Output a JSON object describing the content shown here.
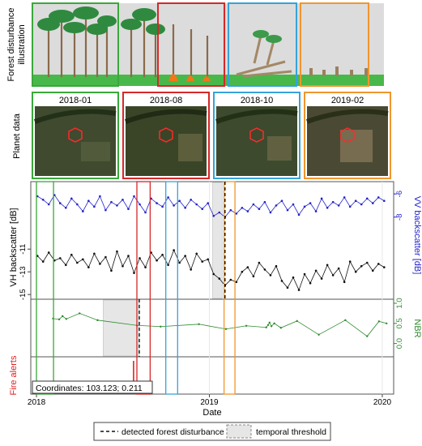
{
  "illustration": {
    "row_label_line1": "Forest disturbance",
    "row_label_line2": "illustration"
  },
  "planet": {
    "row_label": "Planet data",
    "panels": [
      {
        "label": "2018-01",
        "color": "#3aa83a"
      },
      {
        "label": "2018-08",
        "color": "#d62728"
      },
      {
        "label": "2018-10",
        "color": "#35a3d9"
      },
      {
        "label": "2019-02",
        "color": "#f0962e"
      }
    ]
  },
  "colors": {
    "vh": "#111111",
    "vv": "#2222cc",
    "nbr": "#2e8b2e",
    "fire": "#e02020",
    "threshold": "#e6e6e6",
    "green": "#3aa83a",
    "red": "#d62728",
    "blue": "#35a3d9",
    "orange": "#f0962e"
  },
  "annotation": {
    "coordinates": "Coordinates: 103.123; 0.211"
  },
  "legend": {
    "detected": "detected forest disturbance",
    "threshold": "temporal threshold"
  },
  "chart_data": [
    {
      "type": "line",
      "panel": "backscatter",
      "ylabel_left": "VH backscatter [dB]",
      "ylabel_right": "VV backscatter [dB]",
      "xlim": [
        "2017-12-20",
        "2020-01-25"
      ],
      "left_ticks": [
        "-11",
        "-13",
        "-15"
      ],
      "right_ticks": [
        "-6",
        "-8"
      ],
      "series": [
        {
          "name": "VV",
          "axis": "right",
          "x": [
            "2018-01-03",
            "2018-01-15",
            "2018-01-27",
            "2018-02-08",
            "2018-02-20",
            "2018-03-04",
            "2018-03-16",
            "2018-03-28",
            "2018-04-09",
            "2018-04-21",
            "2018-05-03",
            "2018-05-15",
            "2018-05-27",
            "2018-06-08",
            "2018-06-20",
            "2018-07-02",
            "2018-07-14",
            "2018-07-26",
            "2018-08-07",
            "2018-08-19",
            "2018-08-31",
            "2018-09-12",
            "2018-09-24",
            "2018-10-06",
            "2018-10-18",
            "2018-10-30",
            "2018-11-11",
            "2018-11-23",
            "2018-12-05",
            "2018-12-17",
            "2018-12-29",
            "2019-01-10",
            "2019-01-22",
            "2019-02-03",
            "2019-02-15",
            "2019-02-27",
            "2019-03-11",
            "2019-03-23",
            "2019-04-04",
            "2019-04-16",
            "2019-04-28",
            "2019-05-10",
            "2019-05-22",
            "2019-06-03",
            "2019-06-15",
            "2019-06-27",
            "2019-07-09",
            "2019-07-21",
            "2019-08-02",
            "2019-08-14",
            "2019-08-26",
            "2019-09-07",
            "2019-09-19",
            "2019-10-01",
            "2019-10-13",
            "2019-10-25",
            "2019-11-06",
            "2019-11-18",
            "2019-11-30",
            "2019-12-12",
            "2019-12-24",
            "2020-01-05"
          ],
          "y": [
            -6.2,
            -6.5,
            -6.9,
            -6.1,
            -6.8,
            -7.2,
            -6.4,
            -6.9,
            -7.5,
            -6.6,
            -7.1,
            -6.2,
            -7.4,
            -6.7,
            -7.0,
            -6.5,
            -7.3,
            -6.2,
            -6.9,
            -7.6,
            -6.4,
            -6.8,
            -7.1,
            -6.3,
            -7.0,
            -6.6,
            -7.2,
            -6.5,
            -6.9,
            -7.3,
            -6.8,
            -7.9,
            -7.6,
            -8.0,
            -7.4,
            -7.7,
            -7.2,
            -7.5,
            -6.9,
            -7.3,
            -6.7,
            -7.6,
            -7.0,
            -6.6,
            -7.4,
            -6.9,
            -7.8,
            -7.1,
            -6.8,
            -7.5,
            -6.4,
            -7.2,
            -6.7,
            -7.0,
            -6.3,
            -7.1,
            -6.6,
            -6.9,
            -6.4,
            -6.8,
            -6.3,
            -6.6
          ]
        },
        {
          "name": "VH",
          "axis": "left",
          "x": [
            "2018-01-03",
            "2018-01-15",
            "2018-01-27",
            "2018-02-08",
            "2018-02-20",
            "2018-03-04",
            "2018-03-16",
            "2018-03-28",
            "2018-04-09",
            "2018-04-21",
            "2018-05-03",
            "2018-05-15",
            "2018-05-27",
            "2018-06-08",
            "2018-06-20",
            "2018-07-02",
            "2018-07-14",
            "2018-07-26",
            "2018-08-07",
            "2018-08-19",
            "2018-08-31",
            "2018-09-12",
            "2018-09-24",
            "2018-10-06",
            "2018-10-18",
            "2018-10-30",
            "2018-11-11",
            "2018-11-23",
            "2018-12-05",
            "2018-12-17",
            "2018-12-29",
            "2019-01-10",
            "2019-01-22",
            "2019-02-03",
            "2019-02-15",
            "2019-02-27",
            "2019-03-11",
            "2019-03-23",
            "2019-04-04",
            "2019-04-16",
            "2019-04-28",
            "2019-05-10",
            "2019-05-22",
            "2019-06-03",
            "2019-06-15",
            "2019-06-27",
            "2019-07-09",
            "2019-07-21",
            "2019-08-02",
            "2019-08-14",
            "2019-08-26",
            "2019-09-07",
            "2019-09-19",
            "2019-10-01",
            "2019-10-13",
            "2019-10-25",
            "2019-11-06",
            "2019-11-18",
            "2019-11-30",
            "2019-12-12",
            "2019-12-24",
            "2020-01-05"
          ],
          "y": [
            -11.6,
            -12.1,
            -11.3,
            -12.0,
            -11.8,
            -12.4,
            -11.5,
            -12.2,
            -11.9,
            -12.6,
            -11.4,
            -12.3,
            -11.7,
            -12.9,
            -11.2,
            -12.5,
            -11.6,
            -13.1,
            -11.8,
            -12.6,
            -11.3,
            -12.0,
            -11.5,
            -12.4,
            -11.1,
            -12.2,
            -11.6,
            -12.8,
            -11.4,
            -12.1,
            -11.9,
            -13.2,
            -13.6,
            -14.2,
            -13.7,
            -13.9,
            -13.0,
            -12.6,
            -13.4,
            -12.2,
            -12.8,
            -13.3,
            -12.5,
            -13.8,
            -14.4,
            -13.5,
            -14.6,
            -13.2,
            -14.0,
            -12.9,
            -13.6,
            -12.4,
            -13.3,
            -12.7,
            -13.9,
            -12.1,
            -13.0,
            -12.5,
            -12.2,
            -12.9,
            -12.3,
            -12.6
          ]
        }
      ]
    },
    {
      "type": "line",
      "panel": "nbr",
      "ylabel_right": "NBR",
      "ylim": [
        -0.25,
        1.0
      ],
      "right_ticks": [
        "1.0",
        "0.5",
        "0.0"
      ],
      "series": [
        {
          "name": "NBR",
          "x": [
            "2018-02-05",
            "2018-02-18",
            "2018-02-25",
            "2018-03-05",
            "2018-04-02",
            "2018-05-10",
            "2018-08-01",
            "2018-09-20",
            "2018-12-10",
            "2019-02-05",
            "2019-03-20",
            "2019-05-01",
            "2019-05-05",
            "2019-05-08",
            "2019-05-12",
            "2019-05-18",
            "2019-06-01",
            "2019-07-05",
            "2019-08-20",
            "2019-10-15",
            "2019-11-30",
            "2019-12-25",
            "2020-01-10"
          ],
          "y": [
            0.62,
            0.6,
            0.68,
            0.61,
            0.75,
            0.58,
            0.45,
            0.42,
            0.48,
            0.36,
            0.44,
            0.4,
            0.46,
            0.52,
            0.43,
            0.5,
            0.39,
            0.56,
            0.22,
            0.58,
            0.18,
            0.55,
            0.5
          ]
        }
      ]
    },
    {
      "type": "scatter",
      "panel": "fire",
      "ylabel_left": "Fire alerts",
      "x": [
        "2018-07-25"
      ]
    }
  ],
  "markers": {
    "threshold_spans": [
      {
        "panel": "backscatter",
        "start": "2019-01-08",
        "end": "2019-01-28"
      },
      {
        "panel": "nbr",
        "start": "2018-05-22",
        "end": "2018-08-06"
      }
    ],
    "detections": [
      {
        "panel": "backscatter",
        "date": "2019-02-03"
      },
      {
        "panel": "nbr",
        "date": "2018-08-06"
      }
    ],
    "windows": [
      {
        "color": "green",
        "start": "2018-01-01",
        "end": "2018-02-06"
      },
      {
        "color": "red",
        "start": "2018-08-01",
        "end": "2018-08-29"
      },
      {
        "color": "blue",
        "start": "2018-10-01",
        "end": "2018-10-26"
      },
      {
        "color": "orange",
        "start": "2019-02-01",
        "end": "2019-02-24"
      }
    ]
  },
  "x_axis": {
    "label": "Date",
    "ticks": [
      {
        "label": "2018",
        "date": "2018-01-01"
      },
      {
        "label": "2019",
        "date": "2019-01-01"
      },
      {
        "label": "2020",
        "date": "2020-01-01"
      }
    ]
  }
}
